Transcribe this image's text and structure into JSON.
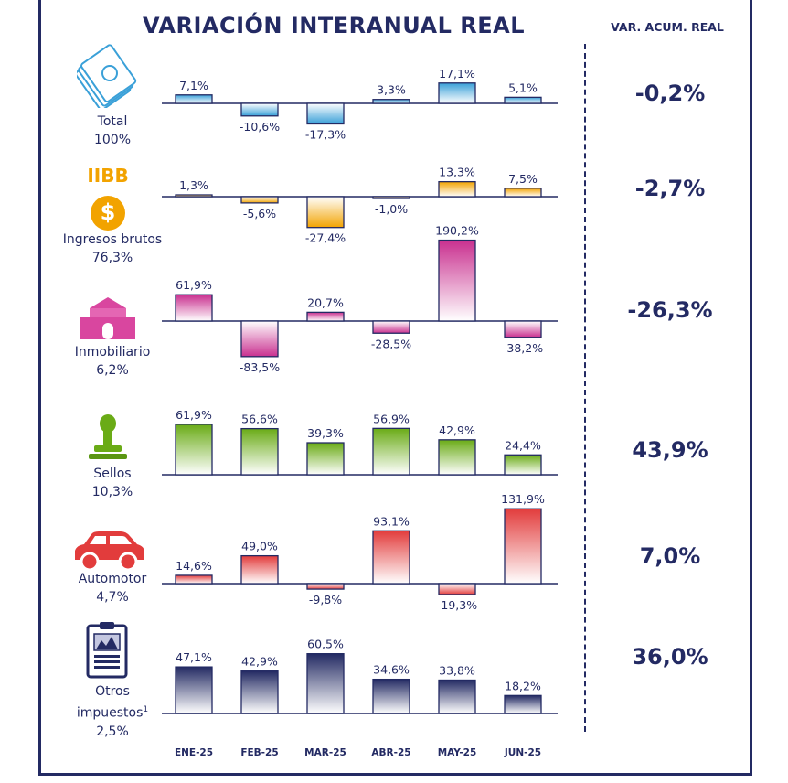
{
  "title": "VARIACIÓN INTERANUAL REAL",
  "accum_header": "VAR. ACUM. REAL",
  "chart_data": {
    "type": "bar",
    "categories": [
      "ENE-25",
      "FEB-25",
      "MAR-25",
      "ABR-25",
      "MAY-25",
      "JUN-25"
    ],
    "rows": [
      {
        "key": "total",
        "label": "Total",
        "share": "100%",
        "icon": "money-icon",
        "color": "#3aa0d8",
        "values": [
          7.1,
          -10.6,
          -17.3,
          3.3,
          17.1,
          5.1
        ],
        "value_labels": [
          "7,1%",
          "-10,6%",
          "-17,3%",
          "3,3%",
          "17,1%",
          "5,1%"
        ],
        "accumulated": "-0,2%"
      },
      {
        "key": "iibb",
        "label": "Ingresos brutos",
        "share": "76,3%",
        "icon": "dollar-coin-icon",
        "icon_text": "IIBB",
        "coin_symbol": "$",
        "color": "#f2a300",
        "values": [
          1.3,
          -5.6,
          -27.4,
          -1.0,
          13.3,
          7.5
        ],
        "value_labels": [
          "1,3%",
          "-5,6%",
          "-27,4%",
          "-1,0%",
          "13,3%",
          "7,5%"
        ],
        "accumulated": "-2,7%"
      },
      {
        "key": "inmobiliario",
        "label": "Inmobiliario",
        "share": "6,2%",
        "icon": "house-icon",
        "color": "#c9308f",
        "values": [
          61.9,
          -83.5,
          20.7,
          -28.5,
          190.2,
          -38.2
        ],
        "value_labels": [
          "61,9%",
          "-83,5%",
          "20,7%",
          "-28,5%",
          "190,2%",
          "-38,2%"
        ],
        "accumulated": "-26,3%"
      },
      {
        "key": "sellos",
        "label": "Sellos",
        "share": "10,3%",
        "icon": "stamp-icon",
        "color": "#6aab16",
        "values": [
          61.9,
          56.6,
          39.3,
          56.9,
          42.9,
          24.4
        ],
        "value_labels": [
          "61,9%",
          "56,6%",
          "39,3%",
          "56,9%",
          "42,9%",
          "24,4%"
        ],
        "accumulated": "43,9%"
      },
      {
        "key": "automotor",
        "label": "Automotor",
        "share": "4,7%",
        "icon": "car-icon",
        "color": "#e23c3c",
        "values": [
          14.6,
          49.0,
          -9.8,
          93.1,
          -19.3,
          131.9
        ],
        "value_labels": [
          "14,6%",
          "49,0%",
          "-9,8%",
          "93,1%",
          "-19,3%",
          "131,9%"
        ],
        "accumulated": "7,0%"
      },
      {
        "key": "otros",
        "label": "Otros impuestos",
        "label_line1": "Otros",
        "label_line2": "impuestos",
        "footnote": "1",
        "share": "2,5%",
        "icon": "document-chart-icon",
        "color": "#232a63",
        "values": [
          47.1,
          42.9,
          60.5,
          34.6,
          33.8,
          18.2
        ],
        "value_labels": [
          "47,1%",
          "42,9%",
          "60,5%",
          "34,6%",
          "33,8%",
          "18,2%"
        ],
        "accumulated": "36,0%"
      }
    ]
  }
}
